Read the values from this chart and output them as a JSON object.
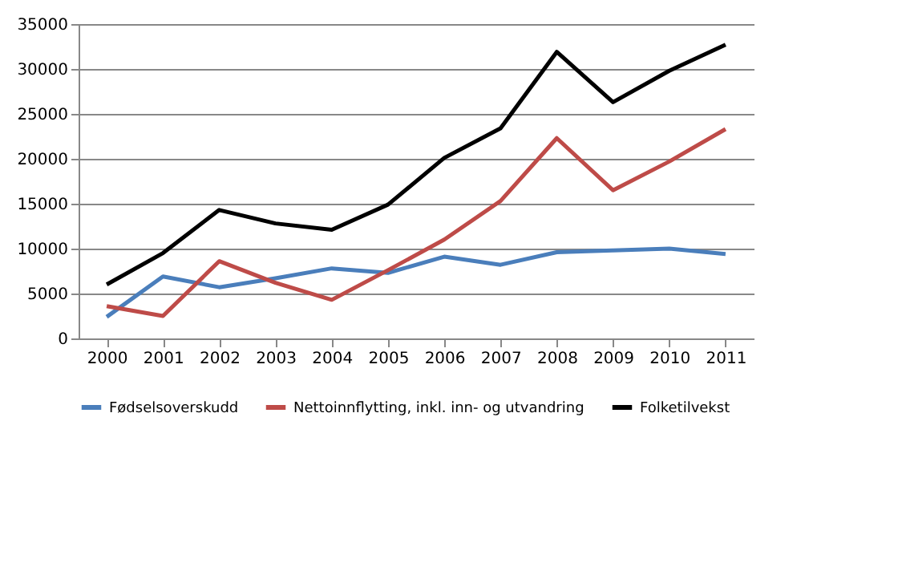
{
  "chart_data": {
    "type": "line",
    "categories": [
      "2000",
      "2001",
      "2002",
      "2003",
      "2004",
      "2005",
      "2006",
      "2007",
      "2008",
      "2009",
      "2010",
      "2011"
    ],
    "series": [
      {
        "name": "Fødselsoverskudd",
        "color": "#4a7ebb",
        "values": [
          2400,
          6900,
          5700,
          6700,
          7800,
          7300,
          9100,
          8200,
          9600,
          9800,
          10000,
          9400
        ]
      },
      {
        "name": "Nettoinnflytting, inkl. inn- og utvandring",
        "color": "#be4b48",
        "values": [
          3600,
          2500,
          8600,
          6200,
          4300,
          7600,
          11000,
          15300,
          22300,
          16500,
          19700,
          23300
        ]
      },
      {
        "name": "Folketilvekst",
        "color": "#000000",
        "values": [
          6000,
          9500,
          14300,
          12800,
          12100,
          14900,
          20100,
          23400,
          31900,
          26300,
          29800,
          32700
        ]
      }
    ],
    "ylim": [
      0,
      35000
    ],
    "yticks": [
      0,
      5000,
      10000,
      15000,
      20000,
      25000,
      30000,
      35000
    ],
    "grid": "y",
    "legend": "bottom",
    "marker": "none",
    "line_style": "solid"
  }
}
